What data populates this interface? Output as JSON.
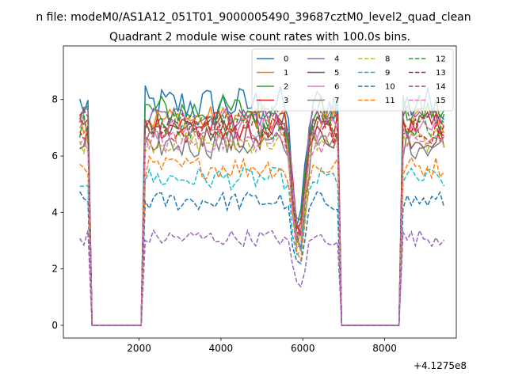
{
  "chart_data": {
    "type": "line",
    "suptitle": "n file: modeM0/AS1A12_051T01_9000005490_39687cztM0_level2_quad_clean",
    "title": "Quadrant 2 module wise count rates with 100.0s bins.",
    "xlabel": "",
    "ylabel": "",
    "x_offset_label": "+4.1275e8",
    "xlim": [
      150,
      9750
    ],
    "ylim": [
      -0.45,
      9.9
    ],
    "x_ticks": [
      2000,
      4000,
      6000,
      8000
    ],
    "x_tick_labels": [
      "2000",
      "4000",
      "6000",
      "8000"
    ],
    "y_ticks": [
      0,
      2,
      4,
      6,
      8
    ],
    "y_tick_labels": [
      "0",
      "2",
      "4",
      "6",
      "8"
    ],
    "grid": false,
    "legend_placement": "top-right",
    "legend_columns": 4,
    "gaps": [
      [
        900,
        2100
      ],
      [
        7000,
        8400
      ]
    ],
    "gap_edges": {
      "gap1_start": 850,
      "gap1_end": 2050,
      "gap2_start": 6950,
      "gap2_end": 8350
    },
    "x_segments": [
      [
        550,
        750
      ],
      [
        2150,
        6850
      ],
      [
        8450,
        9450
      ]
    ],
    "x_step": 100,
    "series": [
      {
        "name": "0",
        "color": "#1f77b4",
        "dash": "solid",
        "level": 7.8,
        "amp": 0.7
      },
      {
        "name": "1",
        "color": "#ff7f0e",
        "dash": "solid",
        "level": 7.3,
        "amp": 0.5
      },
      {
        "name": "2",
        "color": "#2ca02c",
        "dash": "solid",
        "level": 7.6,
        "amp": 0.6
      },
      {
        "name": "3",
        "color": "#d62728",
        "dash": "solid",
        "level": 7.1,
        "amp": 0.5
      },
      {
        "name": "4",
        "color": "#9467bd",
        "dash": "solid",
        "level": 7.4,
        "amp": 0.4
      },
      {
        "name": "5",
        "color": "#8c564b",
        "dash": "solid",
        "level": 6.7,
        "amp": 0.5
      },
      {
        "name": "6",
        "color": "#e377c2",
        "dash": "solid",
        "level": 7.0,
        "amp": 0.4
      },
      {
        "name": "7",
        "color": "#7f7f7f",
        "dash": "solid",
        "level": 6.4,
        "amp": 0.5
      },
      {
        "name": "8",
        "color": "#bcbd22",
        "dash": "dashed",
        "level": 6.5,
        "amp": 0.4
      },
      {
        "name": "9",
        "color": "#17becf",
        "dash": "dashed",
        "level": 5.2,
        "amp": 0.4
      },
      {
        "name": "10",
        "color": "#1f77b4",
        "dash": "dashed",
        "level": 4.4,
        "amp": 0.35
      },
      {
        "name": "11",
        "color": "#ff7f0e",
        "dash": "dashed",
        "level": 5.6,
        "amp": 0.4
      },
      {
        "name": "12",
        "color": "#2ca02c",
        "dash": "dashed",
        "level": 7.1,
        "amp": 0.5
      },
      {
        "name": "13",
        "color": "#d62728",
        "dash": "dashed",
        "level": 6.9,
        "amp": 0.5
      },
      {
        "name": "14",
        "color": "#8c564b",
        "dash": "dashed",
        "level": 7.3,
        "amp": 0.4
      },
      {
        "name": "15",
        "color": "#e377c2",
        "dash": "dashed",
        "level": 6.5,
        "amp": 0.4
      },
      {
        "name": "",
        "color": "#9467bd",
        "dash": "dashed",
        "level": 3.1,
        "amp": 0.3
      }
    ],
    "dip_points": [
      {
        "x": 5900,
        "factor": 0.35
      }
    ]
  }
}
